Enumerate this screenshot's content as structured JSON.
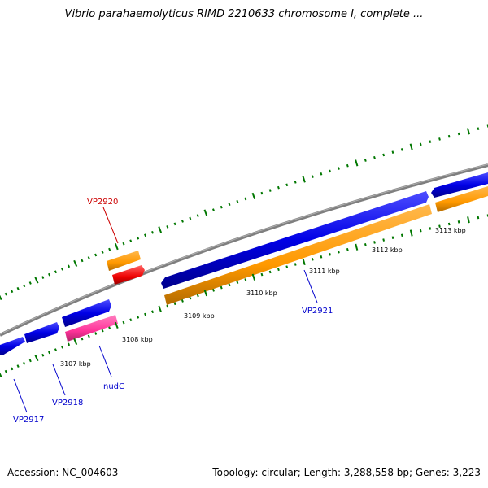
{
  "title": "Vibrio parahaemolyticus RIMD 2210633 chromosome I, complete ...",
  "footer": {
    "accession": "Accession: NC_004603",
    "topology": "Topology: circular; Length: 3,288,558 bp; Genes: 3,223"
  },
  "colors": {
    "backbone": "#808080",
    "forward_gene": "#0000e6",
    "cds": "#ff9900",
    "cds_dark": "#c06a00",
    "rna": "#ff0000",
    "pink_cds": "#ff3399",
    "tick": "#007700",
    "label_blue": "#0000cc",
    "label_red": "#cc0000"
  },
  "ticks": [
    "3107 kbp",
    "3108 kbp",
    "3109 kbp",
    "3110 kbp",
    "3111 kbp",
    "3112 kbp",
    "3113 kbp"
  ],
  "genes": [
    "VP2920",
    "VP2921",
    "nudC",
    "VP2918",
    "VP2917"
  ]
}
